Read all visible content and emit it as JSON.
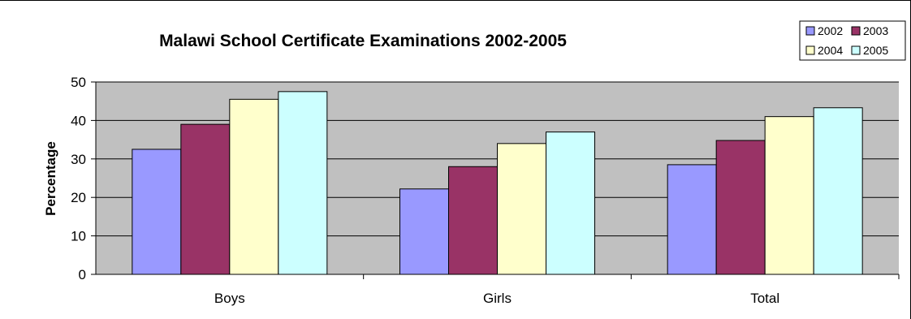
{
  "chart_data": {
    "type": "bar",
    "title": "Malawi School Certificate Examinations 2002-2005",
    "ylabel": "Percentage",
    "xlabel": "",
    "categories": [
      "Boys",
      "Girls",
      "Total"
    ],
    "ylim": [
      0,
      50
    ],
    "yticks": [
      0,
      10,
      20,
      30,
      40,
      50
    ],
    "grid": true,
    "legend_position": "top-right",
    "plot_background": "#c0c0c0",
    "series": [
      {
        "name": "2002",
        "color": "#9999ff",
        "values": [
          32.5,
          22.2,
          28.5
        ]
      },
      {
        "name": "2003",
        "color": "#993366",
        "values": [
          39,
          28,
          34.8
        ]
      },
      {
        "name": "2004",
        "color": "#ffffcc",
        "values": [
          45.5,
          34,
          41
        ]
      },
      {
        "name": "2005",
        "color": "#ccffff",
        "values": [
          47.5,
          37,
          43.3
        ]
      }
    ]
  }
}
